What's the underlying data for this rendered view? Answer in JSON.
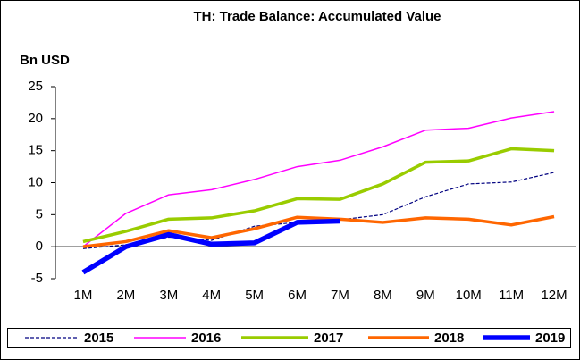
{
  "chart_data": {
    "type": "line",
    "title": "TH: Trade Balance: Accumulated Value",
    "y_label": "Bn USD",
    "categories": [
      "1M",
      "2M",
      "3M",
      "4M",
      "5M",
      "6M",
      "7M",
      "8M",
      "9M",
      "10M",
      "11M",
      "12M"
    ],
    "series": [
      {
        "name": "2015",
        "color": "#000080",
        "values": [
          -0.3,
          0.3,
          1.5,
          1.0,
          3.2,
          3.8,
          4.2,
          5.0,
          7.8,
          9.8,
          10.1,
          11.6
        ]
      },
      {
        "name": "2016",
        "color": "#ff00ff",
        "values": [
          0,
          5.2,
          8.1,
          8.9,
          10.5,
          12.5,
          13.5,
          15.6,
          18.2,
          18.5,
          20.1,
          21.1
        ]
      },
      {
        "name": "2017",
        "color": "#99cc00",
        "values": [
          0.8,
          2.4,
          4.3,
          4.5,
          5.6,
          7.5,
          7.4,
          9.8,
          13.2,
          13.4,
          15.3,
          15.0
        ]
      },
      {
        "name": "2018",
        "color": "#ff6600",
        "values": [
          0,
          0.8,
          2.5,
          1.4,
          2.8,
          4.6,
          4.3,
          3.8,
          4.5,
          4.3,
          3.4,
          4.7
        ]
      },
      {
        "name": "2019",
        "color": "#0000ff",
        "values": [
          -4.0,
          0,
          1.9,
          0.4,
          0.6,
          3.8,
          4.0,
          null,
          null,
          null,
          null,
          null
        ]
      }
    ],
    "ylim": [
      -5,
      25
    ],
    "yticks": [
      -5,
      0,
      5,
      10,
      15,
      20,
      25
    ],
    "legend": "bottom"
  }
}
